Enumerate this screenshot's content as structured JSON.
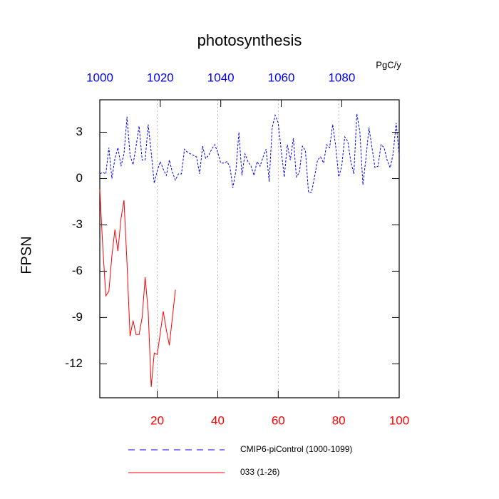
{
  "chart_data": {
    "type": "line",
    "title": "photosynthesis",
    "y_label": "FPSN",
    "units": "PgC/y",
    "xlim": [
      1,
      100
    ],
    "xticks": [
      20,
      40,
      60,
      80,
      100
    ],
    "xtick_color": "#ff0000",
    "x2lim": [
      1000,
      1099
    ],
    "x2ticks": [
      1000,
      1020,
      1040,
      1060,
      1080
    ],
    "x2tick_color": "#0000ff",
    "ylim": [
      -14.2,
      5.1
    ],
    "yticks": [
      3,
      0,
      -3,
      -6,
      -9,
      -12
    ],
    "grid": true,
    "series": [
      {
        "name": "CMIP6-piControl (1000-1099)",
        "color": "#0000ff",
        "dashed": true,
        "x": [
          1,
          2,
          3,
          4,
          5,
          6,
          7,
          8,
          9,
          10,
          11,
          12,
          13,
          14,
          15,
          16,
          17,
          18,
          19,
          20,
          21,
          22,
          23,
          24,
          25,
          26,
          27,
          28,
          29,
          30,
          31,
          32,
          33,
          34,
          35,
          36,
          37,
          38,
          39,
          40,
          41,
          42,
          43,
          44,
          45,
          46,
          47,
          48,
          49,
          50,
          51,
          52,
          53,
          54,
          55,
          56,
          57,
          58,
          59,
          60,
          61,
          62,
          63,
          64,
          65,
          66,
          67,
          68,
          69,
          70,
          71,
          72,
          73,
          74,
          75,
          76,
          77,
          78,
          79,
          80,
          81,
          82,
          83,
          84,
          85,
          86,
          87,
          88,
          89,
          90,
          91,
          92,
          93,
          94,
          95,
          96,
          97,
          98,
          99,
          100
        ],
        "values": [
          0.3,
          0.4,
          0.3,
          2.0,
          0.0,
          1.3,
          2.0,
          0.8,
          1.6,
          4.0,
          1.5,
          0.9,
          2.1,
          3.4,
          1.2,
          1.2,
          3.5,
          1.7,
          -0.3,
          0.5,
          1.1,
          0.6,
          0.2,
          1.2,
          0.4,
          -0.1,
          0.3,
          0.3,
          1.9,
          1.7,
          1.6,
          1.5,
          1.4,
          0.3,
          2.1,
          1.3,
          1.5,
          1.9,
          2.2,
          1.7,
          1.0,
          1.0,
          1.1,
          0.8,
          -0.6,
          0.5,
          3.0,
          0.2,
          1.6,
          1.1,
          0.8,
          0.2,
          1.1,
          0.8,
          1.4,
          1.9,
          -0.2,
          3.3,
          4.1,
          3.6,
          1.8,
          0.1,
          2.2,
          1.2,
          2.6,
          0.1,
          0.4,
          2.1,
          1.8,
          -0.9,
          -0.9,
          0.1,
          1.2,
          1.4,
          1.0,
          2.2,
          2.0,
          3.5,
          2.1,
          0.1,
          0.8,
          2.7,
          2.4,
          1.1,
          0.3,
          4.2,
          3.0,
          -0.4,
          1.3,
          3.3,
          2.0,
          0.7,
          0.8,
          2.2,
          2.0,
          1.2,
          0.7,
          1.6,
          3.6,
          1.5
        ]
      },
      {
        "name": "033 (1-26)",
        "color": "#ff0000",
        "dashed": false,
        "x": [
          1,
          2,
          3,
          4,
          5,
          6,
          7,
          8,
          9,
          10,
          11,
          12,
          13,
          14,
          15,
          16,
          17,
          18,
          19,
          20,
          21,
          22,
          23,
          24,
          25,
          26
        ],
        "values": [
          -0.7,
          -4.5,
          -7.6,
          -7.3,
          -5.0,
          -3.3,
          -4.7,
          -2.6,
          -1.4,
          -5.5,
          -10.2,
          -9.2,
          -10.1,
          -10.1,
          -9.0,
          -6.4,
          -8.6,
          -13.5,
          -11.3,
          -11.4,
          -10.0,
          -8.6,
          -9.8,
          -10.8,
          -9.0,
          -7.2
        ]
      }
    ]
  }
}
